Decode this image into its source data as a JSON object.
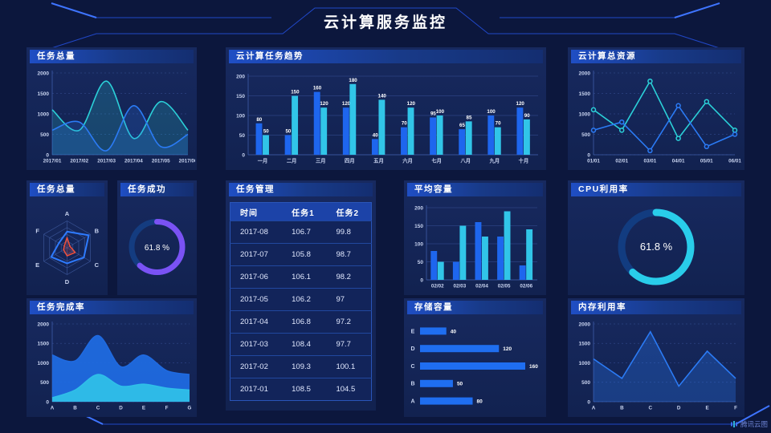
{
  "header": {
    "title": "云计算服务监控"
  },
  "watermark": {
    "text": "腾讯云图"
  },
  "theme": {
    "page_bg": "#0c173d",
    "panel_bg": "#15275b",
    "header_accent": "#1f4ec4",
    "grid": "#2c4383",
    "tick": "#c9d4f0",
    "axis": "#3e5ca8",
    "frame": "#2148c8",
    "frame_accent": "#3e74ff",
    "blue": "#2b7bf5",
    "cyan": "#2bd0d8",
    "bar_blue": "#1e66ee",
    "bar_cyan": "#31c5e8",
    "purple": "#7a52f4",
    "red": "#f0503c"
  },
  "panels": {
    "task_total": {
      "title": "任务总量"
    },
    "task_trend": {
      "title": "云计算任务趋势"
    },
    "total_resource": {
      "title": "云计算总资源"
    },
    "radar": {
      "title": "任务总量"
    },
    "task_success": {
      "title": "任务成功"
    },
    "task_table": {
      "title": "任务管理"
    },
    "avg_capacity": {
      "title": "平均容量"
    },
    "cpu": {
      "title": "CPU利用率"
    },
    "completion": {
      "title": "任务完成率"
    },
    "storage": {
      "title": "存储容量"
    },
    "memory": {
      "title": "内存利用率"
    }
  },
  "table": {
    "headers": [
      "时间",
      "任务1",
      "任务2"
    ],
    "rows": [
      [
        "2017-08",
        "106.7",
        "99.8"
      ],
      [
        "2017-07",
        "105.8",
        "98.7"
      ],
      [
        "2017-06",
        "106.1",
        "98.2"
      ],
      [
        "2017-05",
        "106.2",
        "97"
      ],
      [
        "2017-04",
        "106.8",
        "97.2"
      ],
      [
        "2017-03",
        "108.4",
        "97.7"
      ],
      [
        "2017-02",
        "109.3",
        "100.1"
      ],
      [
        "2017-01",
        "108.5",
        "104.5"
      ]
    ]
  },
  "chart_data": {
    "task_total": {
      "type": "line",
      "smooth": true,
      "area": true,
      "area_opacity": 0.2,
      "dash": true,
      "x": [
        "2017/01",
        "2017/02",
        "2017/03",
        "2017/04",
        "2017/05",
        "2017/06"
      ],
      "series": [
        {
          "name": "series-cyan",
          "color": "#2bd0d8",
          "values": [
            1100,
            600,
            1800,
            400,
            1300,
            600
          ]
        },
        {
          "name": "series-blue",
          "color": "#2b7bf5",
          "values": [
            600,
            800,
            100,
            1200,
            200,
            500
          ]
        }
      ],
      "ylim": [
        0,
        2000
      ],
      "yticks": [
        0,
        500,
        1000,
        1500,
        2000
      ],
      "grid": true
    },
    "task_trend": {
      "type": "bar",
      "labels": true,
      "categories": [
        "一月",
        "二月",
        "三月",
        "四月",
        "五月",
        "六月",
        "七月",
        "八月",
        "九月",
        "十月"
      ],
      "series": [
        {
          "name": "任务1",
          "color": "#1e66ee",
          "values": [
            80,
            50,
            160,
            120,
            40,
            70,
            95,
            65,
            100,
            120
          ]
        },
        {
          "name": "任务2",
          "color": "#31c5e8",
          "values": [
            50,
            150,
            120,
            180,
            140,
            120,
            100,
            85,
            70,
            90
          ]
        }
      ],
      "ylim": [
        0,
        200
      ],
      "yticks": [
        0,
        50,
        100,
        150,
        200
      ],
      "grid": true
    },
    "total_resource": {
      "type": "line",
      "smooth": false,
      "markers": true,
      "dash": true,
      "x": [
        "01/01",
        "02/01",
        "03/01",
        "04/01",
        "05/01",
        "06/01"
      ],
      "series": [
        {
          "name": "series-cyan",
          "color": "#2bd0d8",
          "values": [
            1100,
            600,
            1800,
            400,
            1300,
            600
          ]
        },
        {
          "name": "series-blue",
          "color": "#2b7bf5",
          "values": [
            600,
            800,
            100,
            1200,
            200,
            500
          ]
        }
      ],
      "ylim": [
        0,
        2000
      ],
      "yticks": [
        0,
        500,
        1000,
        1500,
        2000
      ],
      "grid": true
    },
    "radar": {
      "type": "radar",
      "axes": [
        "A",
        "B",
        "C",
        "D",
        "E",
        "F"
      ],
      "max": 100,
      "series": [
        {
          "name": "blue-polygon",
          "color": "#2e7bff",
          "values": [
            60,
            93,
            72,
            58,
            68,
            35
          ],
          "width": 2
        },
        {
          "name": "red-polygon",
          "color": "#f0503c",
          "values": [
            38,
            12,
            35,
            30,
            15,
            12
          ],
          "width": 1.5,
          "fill": true
        }
      ]
    },
    "task_success": {
      "type": "gauge",
      "value": 61.8,
      "label": "61.8 %",
      "color": "#7a52f4",
      "track": "#143c80"
    },
    "avg_capacity": {
      "type": "bar",
      "labels": false,
      "categories": [
        "02/02",
        "02/03",
        "02/04",
        "02/05",
        "02/06"
      ],
      "series": [
        {
          "name": "series-blue",
          "color": "#1e66ee",
          "values": [
            80,
            50,
            160,
            120,
            40
          ]
        },
        {
          "name": "series-cyan",
          "color": "#31c5e8",
          "values": [
            50,
            150,
            120,
            190,
            140
          ]
        }
      ],
      "ylim": [
        0,
        200
      ],
      "yticks": [
        0,
        50,
        100,
        150,
        200
      ],
      "grid": true
    },
    "cpu": {
      "type": "gauge",
      "value": 61.8,
      "label": "61.8 %",
      "color": "#29cdea",
      "track": "#123c80"
    },
    "completion": {
      "type": "line",
      "smooth": true,
      "area": true,
      "area_opacity": 0.95,
      "dash": true,
      "x": [
        "A",
        "B",
        "C",
        "D",
        "E",
        "F",
        "G"
      ],
      "series": [
        {
          "name": "series-blue",
          "color": "#1f6ae0",
          "values": [
            1200,
            1050,
            1700,
            900,
            1200,
            800,
            700
          ]
        },
        {
          "name": "series-cyan",
          "color": "#2fbfe8",
          "values": [
            100,
            300,
            700,
            400,
            450,
            350,
            300
          ]
        }
      ],
      "ylim": [
        0,
        2000
      ],
      "yticks": [
        0,
        500,
        1000,
        1500,
        2000
      ],
      "grid": true
    },
    "storage": {
      "type": "hbar",
      "categories": [
        "E",
        "D",
        "C",
        "B",
        "A"
      ],
      "values": [
        40,
        120,
        160,
        50,
        80
      ],
      "color": "#1f6ef0",
      "xmax": 160
    },
    "memory": {
      "type": "line",
      "smooth": false,
      "area": true,
      "area_opacity": 0.3,
      "dash": true,
      "x": [
        "A",
        "B",
        "C",
        "D",
        "E",
        "F"
      ],
      "series": [
        {
          "name": "series-blue",
          "color": "#2b7bf5",
          "values": [
            1100,
            600,
            1800,
            400,
            1300,
            600
          ]
        }
      ],
      "ylim": [
        0,
        2000
      ],
      "yticks": [
        0,
        500,
        1000,
        1500,
        2000
      ],
      "grid": true
    }
  }
}
